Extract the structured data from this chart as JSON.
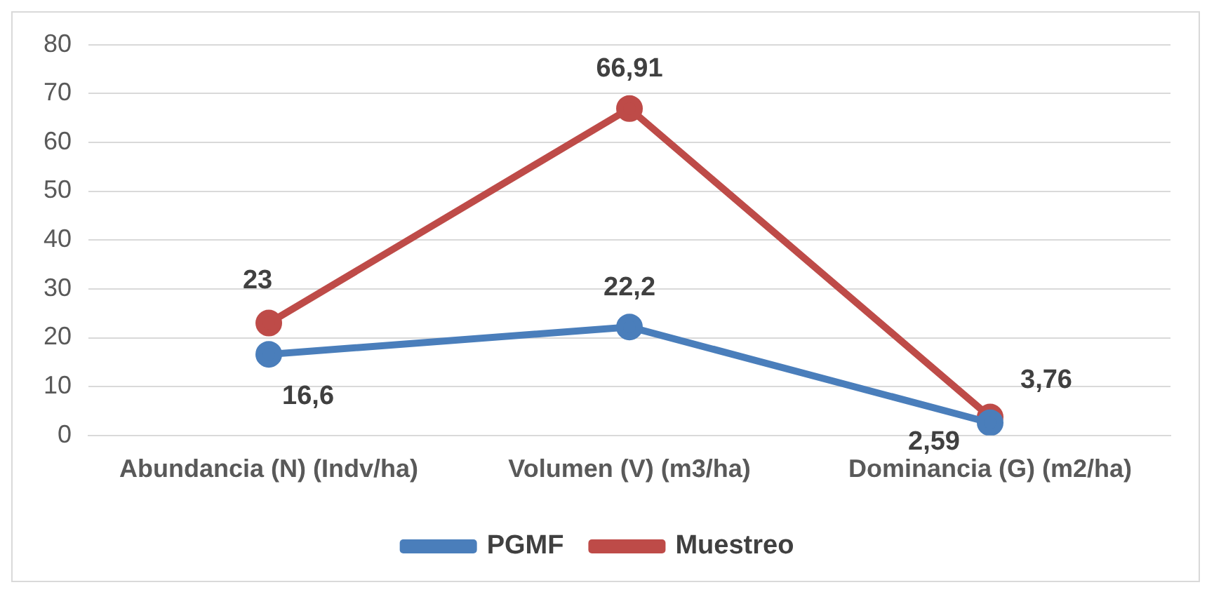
{
  "chart_data": {
    "type": "line",
    "categories": [
      "Abundancia (N) (Indv/ha)",
      "Volumen (V) (m3/ha)",
      "Dominancia (G) (m2/ha)"
    ],
    "series": [
      {
        "name": "PGMF",
        "color": "#4a7ebb",
        "values": [
          16.6,
          22.2,
          2.59
        ],
        "value_labels": [
          "16,6",
          "22,2",
          "2,59"
        ]
      },
      {
        "name": "Muestreo",
        "color": "#be4b48",
        "values": [
          23,
          66.91,
          3.76
        ],
        "value_labels": [
          "23",
          "66,91",
          "3,76"
        ]
      }
    ],
    "ylim": [
      0,
      80
    ],
    "yticks": [
      0,
      10,
      20,
      30,
      40,
      50,
      60,
      70,
      80
    ],
    "grid": "y",
    "legend": "bottom",
    "marker": "circle",
    "line_style": "solid"
  }
}
